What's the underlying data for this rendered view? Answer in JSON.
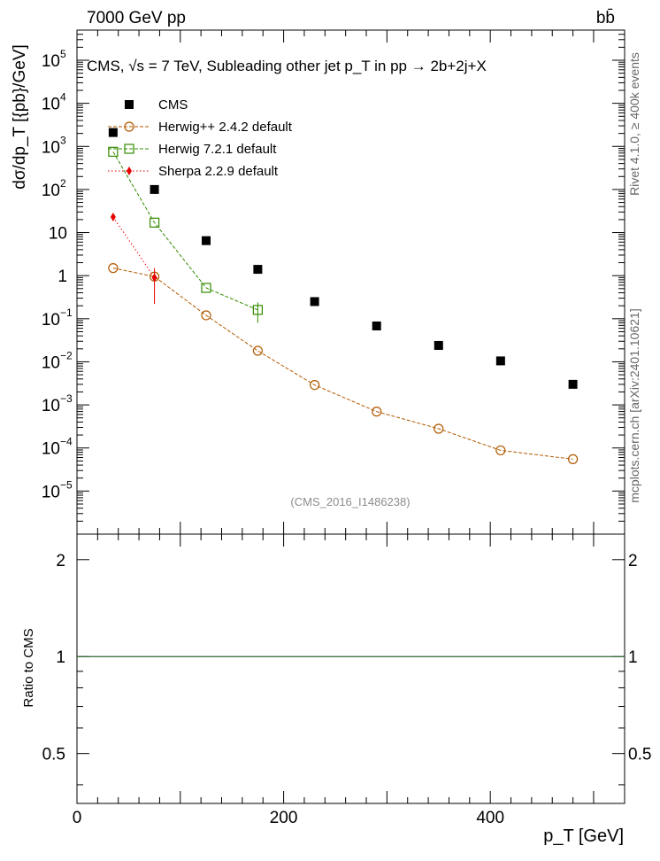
{
  "header": {
    "energy": "7000 GeV pp",
    "process": "bb̄"
  },
  "side": {
    "rivet": "Rivet 4.1.0, ≥ 400k events",
    "mcplots": "mcplots.cern.ch [arXiv:2401.10621]"
  },
  "chart_data": {
    "type": "scatter",
    "title": "CMS, √s = 7 TeV, Subleading other jet p_T in pp → 2b+2j+X",
    "analysis_id": "(CMS_2016_I1486238)",
    "xlabel": "p_T [GeV]",
    "ylabel": "dσ/dp_T [{pb}/GeV]",
    "ratio_ylabel": "Ratio to CMS",
    "xlim": [
      0,
      530
    ],
    "ylim": [
      1e-06,
      500000.0
    ],
    "yscale": "log",
    "ratio_ylim": [
      0.35,
      2.4
    ],
    "x_ticks": [
      0,
      200,
      400
    ],
    "x_tick_labels": [
      "0",
      "200",
      "400"
    ],
    "y_ticks": [
      100000.0,
      10000.0,
      1000.0,
      100.0,
      10,
      1,
      0.1,
      0.01,
      0.001,
      0.0001,
      1e-05
    ],
    "y_tick_labels": [
      {
        "base": "10",
        "exp": "5"
      },
      {
        "base": "10",
        "exp": "4"
      },
      {
        "base": "10",
        "exp": "3"
      },
      {
        "base": "10",
        "exp": "2"
      },
      {
        "base": "10",
        "exp": ""
      },
      {
        "base": "1",
        "exp": ""
      },
      {
        "base": "10",
        "exp": "−1"
      },
      {
        "base": "10",
        "exp": "−2"
      },
      {
        "base": "10",
        "exp": "−3"
      },
      {
        "base": "10",
        "exp": "−4"
      },
      {
        "base": "10",
        "exp": "−5"
      }
    ],
    "ratio_ticks": [
      0.5,
      1,
      2
    ],
    "ratio_tick_labels": [
      "0.5",
      "1",
      "2"
    ],
    "series": [
      {
        "name": "CMS",
        "color": "#000000",
        "marker": "filled-square",
        "line": "none",
        "points": [
          {
            "x": 35,
            "y": 2100
          },
          {
            "x": 75,
            "y": 100
          },
          {
            "x": 125,
            "y": 6.5
          },
          {
            "x": 175,
            "y": 1.4
          },
          {
            "x": 230,
            "y": 0.25
          },
          {
            "x": 290,
            "y": 0.068
          },
          {
            "x": 350,
            "y": 0.024
          },
          {
            "x": 410,
            "y": 0.0105
          },
          {
            "x": 480,
            "y": 0.003
          }
        ]
      },
      {
        "name": "Herwig++ 2.4.2 default",
        "color": "#b35900",
        "marker": "open-circle",
        "line": "dashed",
        "points": [
          {
            "x": 35,
            "y": 1.5
          },
          {
            "x": 75,
            "y": 0.95
          },
          {
            "x": 125,
            "y": 0.12
          },
          {
            "x": 175,
            "y": 0.018
          },
          {
            "x": 230,
            "y": 0.0029
          },
          {
            "x": 290,
            "y": 0.0007
          },
          {
            "x": 350,
            "y": 0.00028
          },
          {
            "x": 410,
            "y": 8.8e-05
          },
          {
            "x": 480,
            "y": 5.5e-05
          }
        ]
      },
      {
        "name": "Herwig 7.2.1 default",
        "color": "#338c00",
        "marker": "open-square",
        "line": "dashed",
        "points": [
          {
            "x": 35,
            "y": 750
          },
          {
            "x": 75,
            "y": 17
          },
          {
            "x": 125,
            "y": 0.52
          },
          {
            "x": 175,
            "y": 0.16,
            "yerr_lo": 0.08,
            "yerr_hi": 0.08
          }
        ]
      },
      {
        "name": "Sherpa 2.2.9 default",
        "color": "#e60000",
        "marker": "filled-diamond",
        "line": "dotted",
        "points": [
          {
            "x": 35,
            "y": 23
          },
          {
            "x": 75,
            "y": 0.9,
            "yerr_lo": 0.68,
            "yerr_hi": 0.6
          }
        ]
      }
    ],
    "ratio_reference": {
      "y": 1,
      "color": "#336633"
    }
  }
}
